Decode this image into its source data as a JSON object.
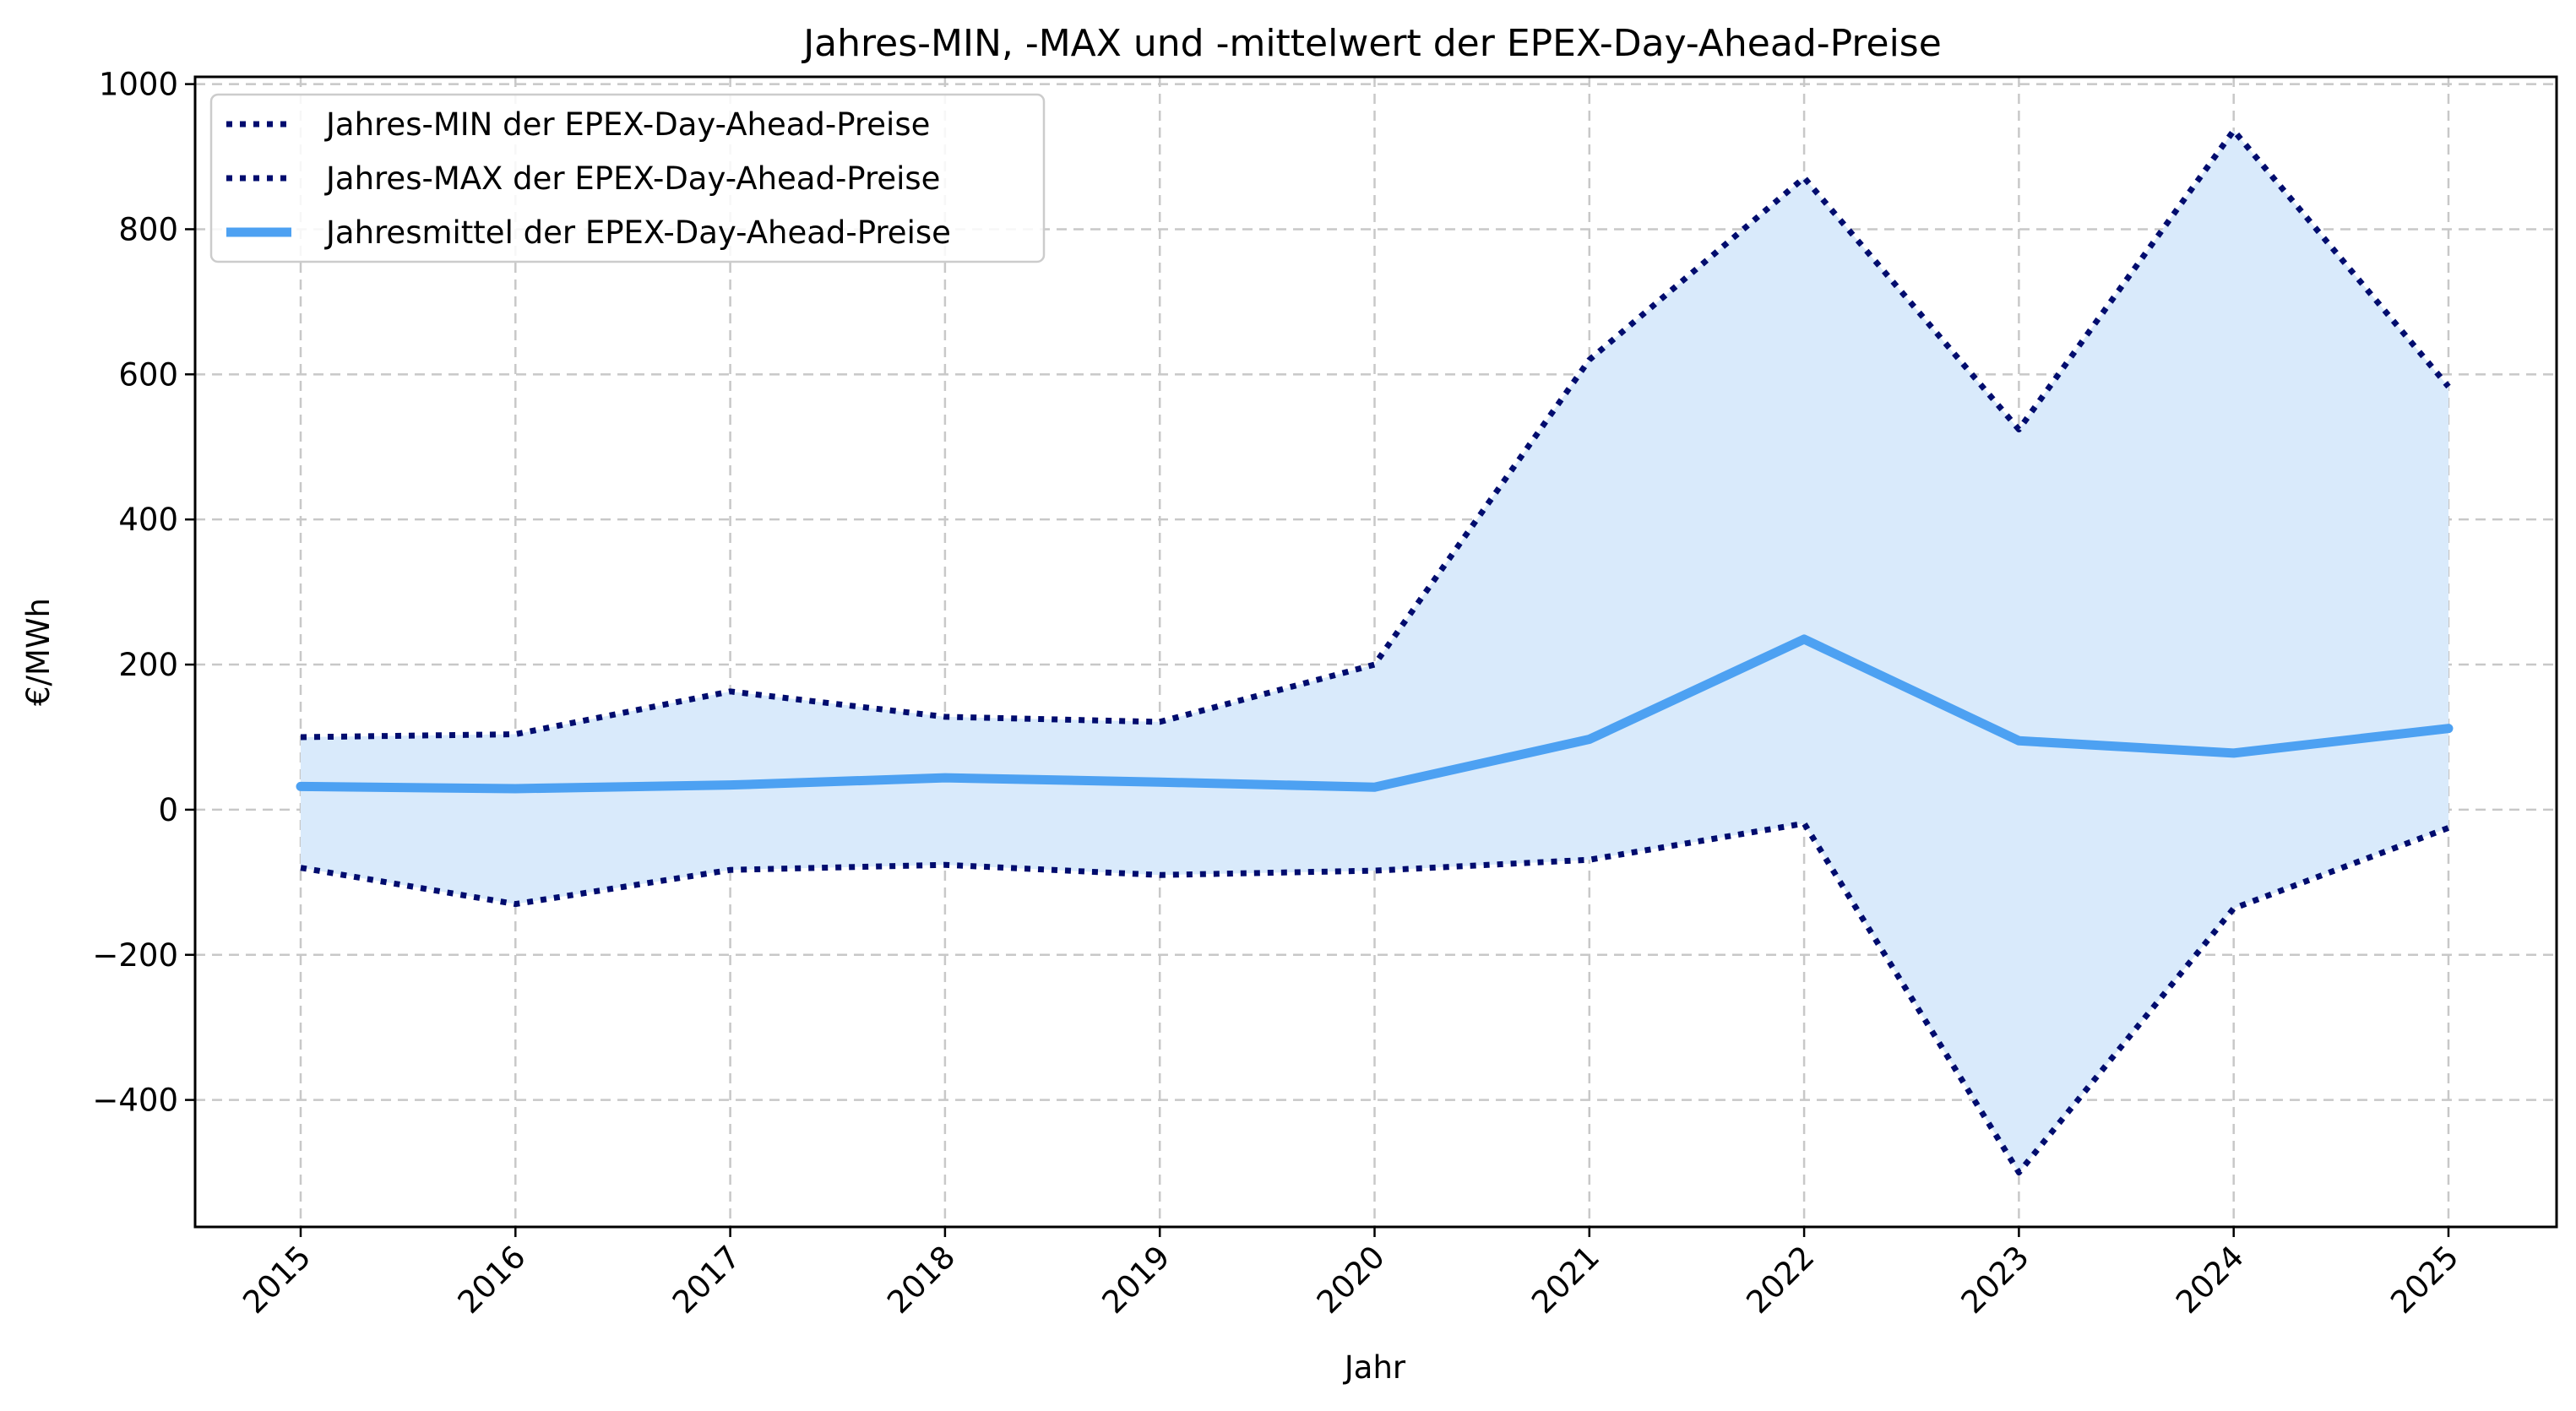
{
  "chart_data": {
    "type": "line",
    "title": "Jahres-MIN, -MAX und -mittelwert der EPEX-Day-Ahead-Preise",
    "xlabel": "Jahr",
    "ylabel": "€/MWh",
    "x": [
      "2015",
      "2016",
      "2017",
      "2018",
      "2019",
      "2020",
      "2021",
      "2022",
      "2023",
      "2024",
      "2025"
    ],
    "ylim": [
      -575,
      1010
    ],
    "yticks": [
      -400,
      -200,
      0,
      200,
      400,
      600,
      800,
      1000
    ],
    "ytick_labels": [
      "−400",
      "−200",
      "0",
      "200",
      "400",
      "600",
      "800",
      "1000"
    ],
    "grid": true,
    "legend_position": "upper-left",
    "series": [
      {
        "name": "Jahres-MIN der EPEX-Day-Ahead-Preise",
        "style": "dotted",
        "color": "#000c6e",
        "values": [
          -80,
          -130,
          -83,
          -76,
          -90,
          -84,
          -69,
          -19,
          -500,
          -136,
          -25
        ]
      },
      {
        "name": "Jahres-MAX der EPEX-Day-Ahead-Preise",
        "style": "dotted",
        "color": "#000c6e",
        "values": [
          100,
          104,
          163,
          128,
          121,
          200,
          620,
          871,
          524,
          936,
          583
        ]
      },
      {
        "name": "Jahresmittel der EPEX-Day-Ahead-Preise",
        "style": "solid",
        "color": "#4da1f2",
        "values": [
          32,
          29,
          34,
          44,
          38,
          31,
          97,
          235,
          95,
          78,
          112
        ]
      }
    ],
    "fill_between": {
      "lower_series": 0,
      "upper_series": 1,
      "color": "#d9eafb"
    }
  }
}
